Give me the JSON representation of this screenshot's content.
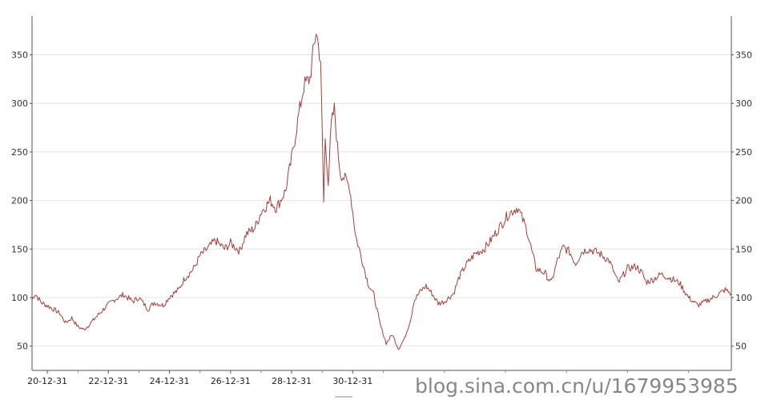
{
  "chart_data": {
    "type": "line",
    "title": "",
    "xlabel": "",
    "ylabel": "",
    "ylim": [
      25,
      390
    ],
    "xlim": [
      1920.0,
      1942.9
    ],
    "grid": true,
    "y_ticks": [
      50,
      100,
      150,
      200,
      250,
      300,
      350
    ],
    "y_tick_labels": [
      "50",
      "100",
      "150",
      "200",
      "250",
      "300",
      "350"
    ],
    "x_ticks": [
      {
        "x": 1920.5,
        "label": "20-12-31"
      },
      {
        "x": 1922.5,
        "label": "22-12-31"
      },
      {
        "x": 1924.5,
        "label": "24-12-31"
      },
      {
        "x": 1926.5,
        "label": "26-12-31"
      },
      {
        "x": 1928.5,
        "label": "28-12-31"
      },
      {
        "x": 1930.5,
        "label": "30-12-31"
      }
    ],
    "series": [
      {
        "color": "#a3403c",
        "x": [
          1920.0,
          1920.1,
          1920.3,
          1920.6,
          1920.9,
          1921.1,
          1921.3,
          1921.5,
          1921.7,
          1921.9,
          1922.1,
          1922.4,
          1922.7,
          1923.0,
          1923.3,
          1923.5,
          1923.8,
          1924.0,
          1924.3,
          1924.5,
          1924.8,
          1925.0,
          1925.3,
          1925.5,
          1925.8,
          1926.0,
          1926.3,
          1926.5,
          1926.8,
          1927.0,
          1927.3,
          1927.5,
          1927.8,
          1928.0,
          1928.3,
          1928.5,
          1928.7,
          1928.9,
          1929.1,
          1929.3,
          1929.45,
          1929.55,
          1929.6,
          1929.7,
          1929.8,
          1929.9,
          1930.0,
          1930.1,
          1930.25,
          1930.4,
          1930.6,
          1930.8,
          1931.0,
          1931.2,
          1931.4,
          1931.6,
          1931.8,
          1932.0,
          1932.2,
          1932.4,
          1932.5,
          1932.7,
          1932.9,
          1933.1,
          1933.3,
          1933.5,
          1933.8,
          1934.0,
          1934.2,
          1934.5,
          1934.8,
          1935.0,
          1935.3,
          1935.6,
          1935.9,
          1936.2,
          1936.5,
          1936.8,
          1937.0,
          1937.2,
          1937.4,
          1937.6,
          1937.8,
          1938.0,
          1938.2,
          1938.4,
          1938.6,
          1938.9,
          1939.2,
          1939.5,
          1939.8,
          1940.0,
          1940.1,
          1940.3,
          1940.6,
          1940.9,
          1941.2,
          1941.5,
          1941.8,
          1942.0,
          1942.3,
          1942.5,
          1942.7,
          1942.9
        ],
        "values": [
          98,
          104,
          95,
          90,
          84,
          74,
          79,
          70,
          67,
          73,
          80,
          90,
          98,
          103,
          96,
          100,
          88,
          95,
          92,
          101,
          108,
          120,
          130,
          143,
          152,
          159,
          150,
          156,
          148,
          165,
          172,
          188,
          200,
          192,
          210,
          243,
          282,
          318,
          326,
          375,
          345,
          198,
          262,
          220,
          278,
          294,
          255,
          228,
          222,
          214,
          163,
          140,
          115,
          102,
          72,
          53,
          62,
          47,
          58,
          78,
          96,
          106,
          112,
          104,
          94,
          96,
          104,
          122,
          133,
          145,
          150,
          158,
          172,
          186,
          193,
          170,
          130,
          125,
          115,
          138,
          152,
          147,
          135,
          147,
          150,
          148,
          145,
          138,
          115,
          130,
          132,
          124,
          116,
          118,
          124,
          120,
          115,
          100,
          92,
          95,
          100,
          104,
          108,
          104
        ]
      }
    ],
    "watermark": "blog.sina.com.cn/u/1679953985"
  }
}
